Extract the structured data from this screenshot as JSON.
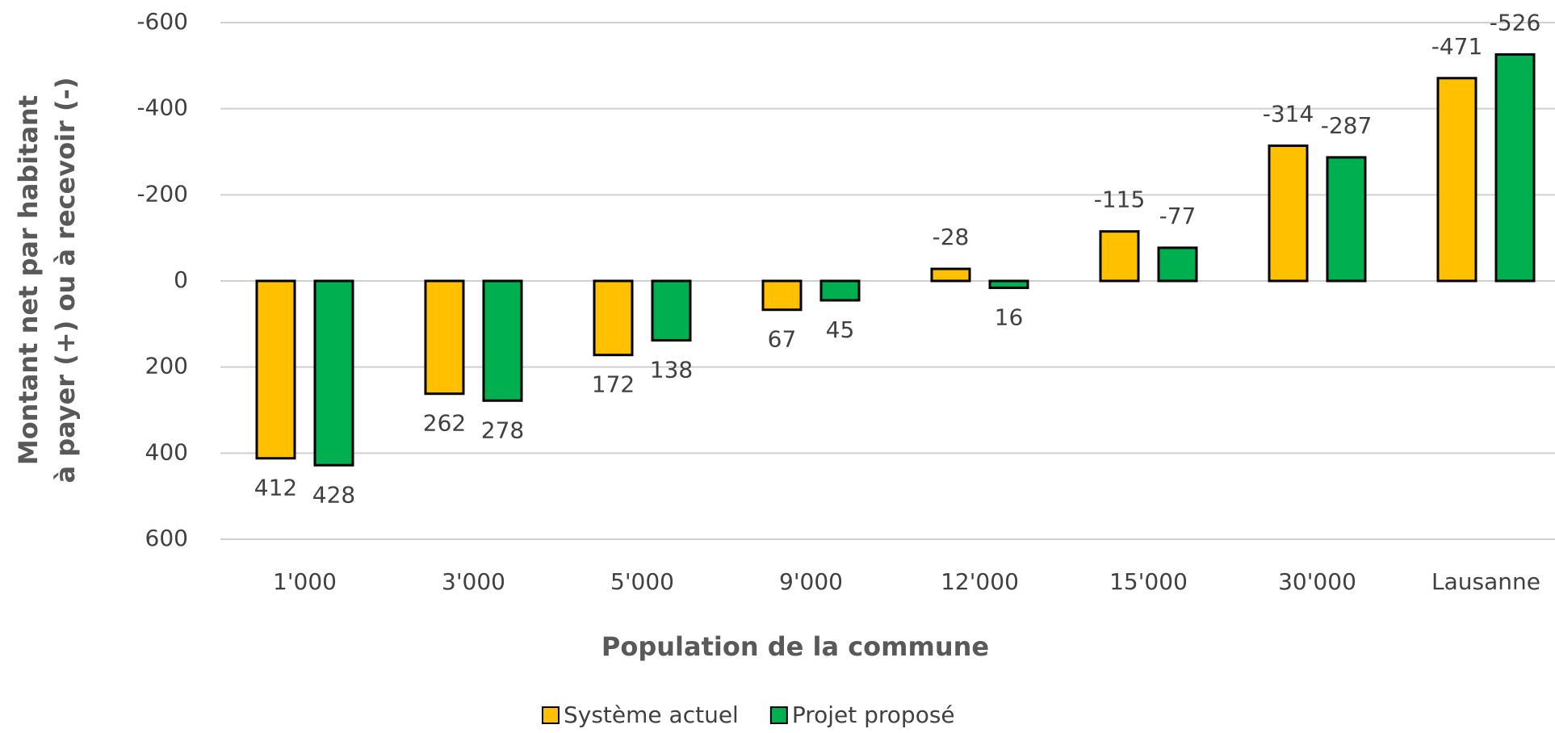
{
  "chart_data": {
    "type": "bar",
    "x_label": "Population de la commune",
    "y_label": [
      "Montant net par habitant",
      "à payer (+) ou à recevoir (-)"
    ],
    "categories": [
      "1'000",
      "3'000",
      "5'000",
      "9'000",
      "12'000",
      "15'000",
      "30'000",
      "Lausanne"
    ],
    "series": [
      {
        "name": "Système actuel",
        "color": "#FFC000",
        "values": [
          412,
          262,
          172,
          67,
          -28,
          -115,
          -314,
          -471
        ]
      },
      {
        "name": "Projet proposé",
        "color": "#00B050",
        "values": [
          428,
          278,
          138,
          45,
          16,
          -77,
          -287,
          -526
        ]
      }
    ],
    "ylim": [
      -600,
      600
    ],
    "y_inverted": true,
    "yticks": [
      -600,
      -400,
      -200,
      0,
      200,
      400,
      600
    ],
    "grid": true,
    "legend": "bottom"
  }
}
